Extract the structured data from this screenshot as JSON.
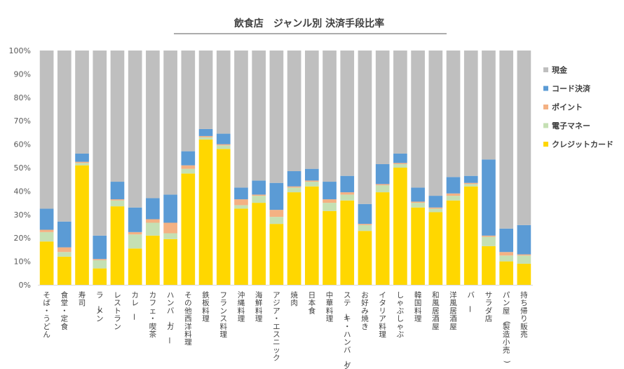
{
  "chart_data": {
    "type": "bar",
    "stacked": true,
    "title": "飲食店　ジャンル別 決済手段比率",
    "ylim": [
      0,
      100
    ],
    "yticks": [
      "0%",
      "10%",
      "20%",
      "30%",
      "40%",
      "50%",
      "60%",
      "70%",
      "80%",
      "90%",
      "100%"
    ],
    "categories": [
      "そば・うどん",
      "食堂・定食",
      "寿司",
      "ラーメン",
      "レストラン",
      "カレー",
      "カフェ・喫茶",
      "ハンバーガー",
      "その他西洋料理",
      "鉄板料理",
      "フランス料理",
      "沖縄料理",
      "海鮮料理",
      "アジア・エスニック",
      "焼肉",
      "日本食",
      "中華料理",
      "ステーキ・ハンバーグ",
      "お好み焼き",
      "イタリア料理",
      "しゃぶしゃぶ",
      "韓国料理",
      "和風居酒屋",
      "洋風居酒屋",
      "バー",
      "サラダ店",
      "パン屋(製造小売)",
      "持ち帰り販売"
    ],
    "legend_position": "right",
    "series": [
      {
        "name": "クレジットカード",
        "color": "#FFD700",
        "values": [
          18.5,
          12.0,
          51.0,
          7.0,
          33.5,
          15.5,
          21.0,
          19.5,
          47.5,
          62.0,
          58.0,
          32.5,
          35.0,
          26.0,
          39.5,
          42.0,
          31.5,
          36.0,
          23.0,
          39.5,
          50.0,
          33.0,
          31.0,
          36.0,
          42.0,
          16.5,
          10.0,
          9.0
        ]
      },
      {
        "name": "電子マネー",
        "color": "#C5E0B4",
        "values": [
          4.0,
          2.0,
          1.0,
          3.5,
          2.5,
          6.0,
          5.5,
          2.5,
          2.0,
          1.0,
          1.5,
          1.5,
          3.0,
          3.0,
          2.0,
          2.0,
          3.5,
          2.5,
          2.5,
          3.0,
          1.5,
          2.0,
          1.5,
          2.0,
          1.0,
          4.0,
          2.5,
          3.5
        ]
      },
      {
        "name": "ポイント",
        "color": "#F4B183",
        "values": [
          1.0,
          2.0,
          0.5,
          0.5,
          0.5,
          1.0,
          1.5,
          4.5,
          1.5,
          0.5,
          0.5,
          2.5,
          0.5,
          3.0,
          0.5,
          0.5,
          1.5,
          1.0,
          0.5,
          0.5,
          0.5,
          0.5,
          0.5,
          1.0,
          0.5,
          0.5,
          1.5,
          0.5
        ]
      },
      {
        "name": "コード決済",
        "color": "#5B9BD5",
        "values": [
          9.0,
          11.0,
          3.5,
          10.0,
          7.5,
          10.5,
          9.0,
          12.0,
          6.0,
          3.0,
          4.5,
          5.0,
          6.0,
          11.5,
          6.5,
          5.0,
          7.5,
          7.0,
          8.5,
          8.5,
          4.0,
          6.0,
          5.0,
          7.0,
          3.0,
          32.5,
          10.0,
          12.5
        ]
      },
      {
        "name": "現金",
        "color": "#BFBFBF",
        "values": [
          67.5,
          73.0,
          44.0,
          79.0,
          56.0,
          67.0,
          63.0,
          61.5,
          43.0,
          33.5,
          35.5,
          58.5,
          55.5,
          56.5,
          51.5,
          50.5,
          56.0,
          53.5,
          65.5,
          48.5,
          44.0,
          58.5,
          62.0,
          54.0,
          53.5,
          46.5,
          76.0,
          74.5
        ]
      }
    ],
    "legend_order": [
      "現金",
      "コード決済",
      "ポイント",
      "電子マネー",
      "クレジットカード"
    ]
  }
}
